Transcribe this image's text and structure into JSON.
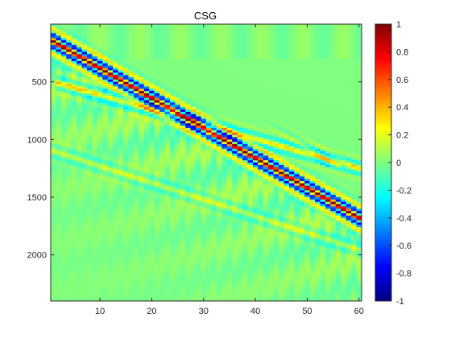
{
  "chart_data": {
    "type": "heatmap",
    "title": "CSG",
    "xlabel": "",
    "ylabel": "",
    "colormap": "jet",
    "x_range": [
      0.5,
      60.5
    ],
    "y_range": [
      0,
      2400
    ],
    "y_reversed": true,
    "x_ticks": [
      10,
      20,
      30,
      40,
      50,
      60
    ],
    "y_ticks": [
      500,
      1000,
      1500,
      2000
    ],
    "colorbar": {
      "clim": [
        -1,
        1
      ],
      "ticks": [
        1,
        0.8,
        0.6,
        0.4,
        0.2,
        0,
        -0.2,
        -0.4,
        -0.6,
        -0.8,
        -1
      ],
      "tick_labels": [
        "1",
        "0.8",
        "0.6",
        "0.4",
        "0.2",
        "0",
        "-0.2",
        "-0.4",
        "-0.6",
        "-0.8",
        "-1"
      ]
    },
    "background_value": 0,
    "events": [
      {
        "kind": "direct-arrival",
        "trace_start": 1,
        "time_start": 150,
        "trace_end": 60,
        "time_end": 1680,
        "peak": 1.0
      },
      {
        "kind": "reflection",
        "trace_start": 5,
        "time_start": 550,
        "trace_end": 60,
        "time_end": 1250,
        "peak": 0.3
      },
      {
        "kind": "reflection",
        "trace_start": 1,
        "time_start": 1100,
        "trace_end": 30,
        "time_end": 1520,
        "peak": 0.15
      }
    ]
  }
}
